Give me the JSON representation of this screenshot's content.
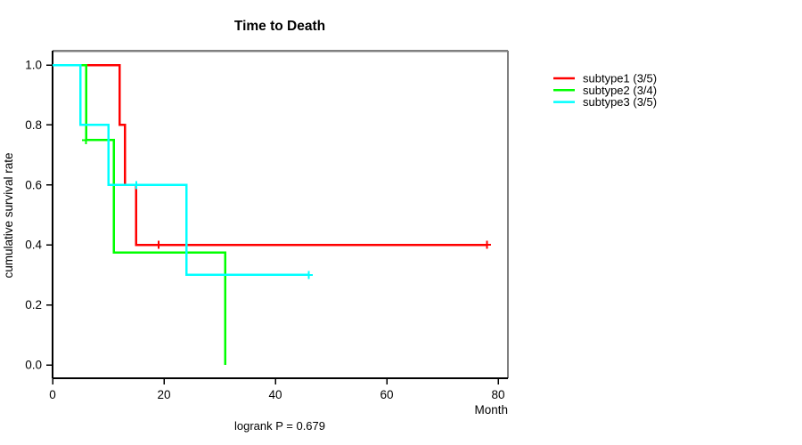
{
  "title": "Time to Death",
  "xlabel": "Month",
  "ylabel": "cumulative survival rate",
  "footer": "logrank P = 0.679",
  "legend": {
    "entries": [
      "subtype1 (3/5)",
      "subtype2 (3/4)",
      "subtype3 (3/5)"
    ]
  },
  "colors": {
    "subtype1": "#ff0000",
    "subtype2": "#00ff00",
    "subtype3": "#00ffff",
    "axis": "#000000",
    "box_border": "#808080"
  },
  "chart_data": {
    "type": "line",
    "subtype": "kaplan-meier-step",
    "title": "Time to Death",
    "xlabel": "Month",
    "ylabel": "cumulative survival rate",
    "annotation": "logrank P = 0.679",
    "xlim": [
      0,
      80
    ],
    "ylim": [
      0.0,
      1.0
    ],
    "xticks": [
      0,
      20,
      40,
      60,
      80
    ],
    "yticks": [
      0.0,
      0.2,
      0.4,
      0.6,
      0.8,
      1.0
    ],
    "grid": false,
    "legend_position": "right-outside",
    "censor_symbol": "+",
    "series": [
      {
        "name": "subtype1 (3/5)",
        "color": "#ff0000",
        "steps": [
          [
            0,
            1.0
          ],
          [
            12,
            1.0
          ],
          [
            12,
            0.8
          ],
          [
            13,
            0.8
          ],
          [
            13,
            0.6
          ],
          [
            15,
            0.6
          ],
          [
            15,
            0.4
          ],
          [
            78,
            0.4
          ]
        ],
        "censors": [
          [
            19,
            0.4
          ],
          [
            78,
            0.4
          ]
        ]
      },
      {
        "name": "subtype2 (3/4)",
        "color": "#00ff00",
        "steps": [
          [
            0,
            1.0
          ],
          [
            6,
            1.0
          ],
          [
            6,
            0.75
          ],
          [
            11,
            0.75
          ],
          [
            11,
            0.375
          ],
          [
            31,
            0.375
          ],
          [
            31,
            0.0
          ]
        ],
        "censors": [
          [
            6,
            0.75
          ]
        ]
      },
      {
        "name": "subtype3 (3/5)",
        "color": "#00ffff",
        "steps": [
          [
            0,
            1.0
          ],
          [
            5,
            1.0
          ],
          [
            5,
            0.8
          ],
          [
            10,
            0.8
          ],
          [
            10,
            0.6
          ],
          [
            24,
            0.6
          ],
          [
            24,
            0.3
          ],
          [
            46,
            0.3
          ]
        ],
        "censors": [
          [
            15,
            0.6
          ],
          [
            46,
            0.3
          ]
        ]
      }
    ]
  }
}
